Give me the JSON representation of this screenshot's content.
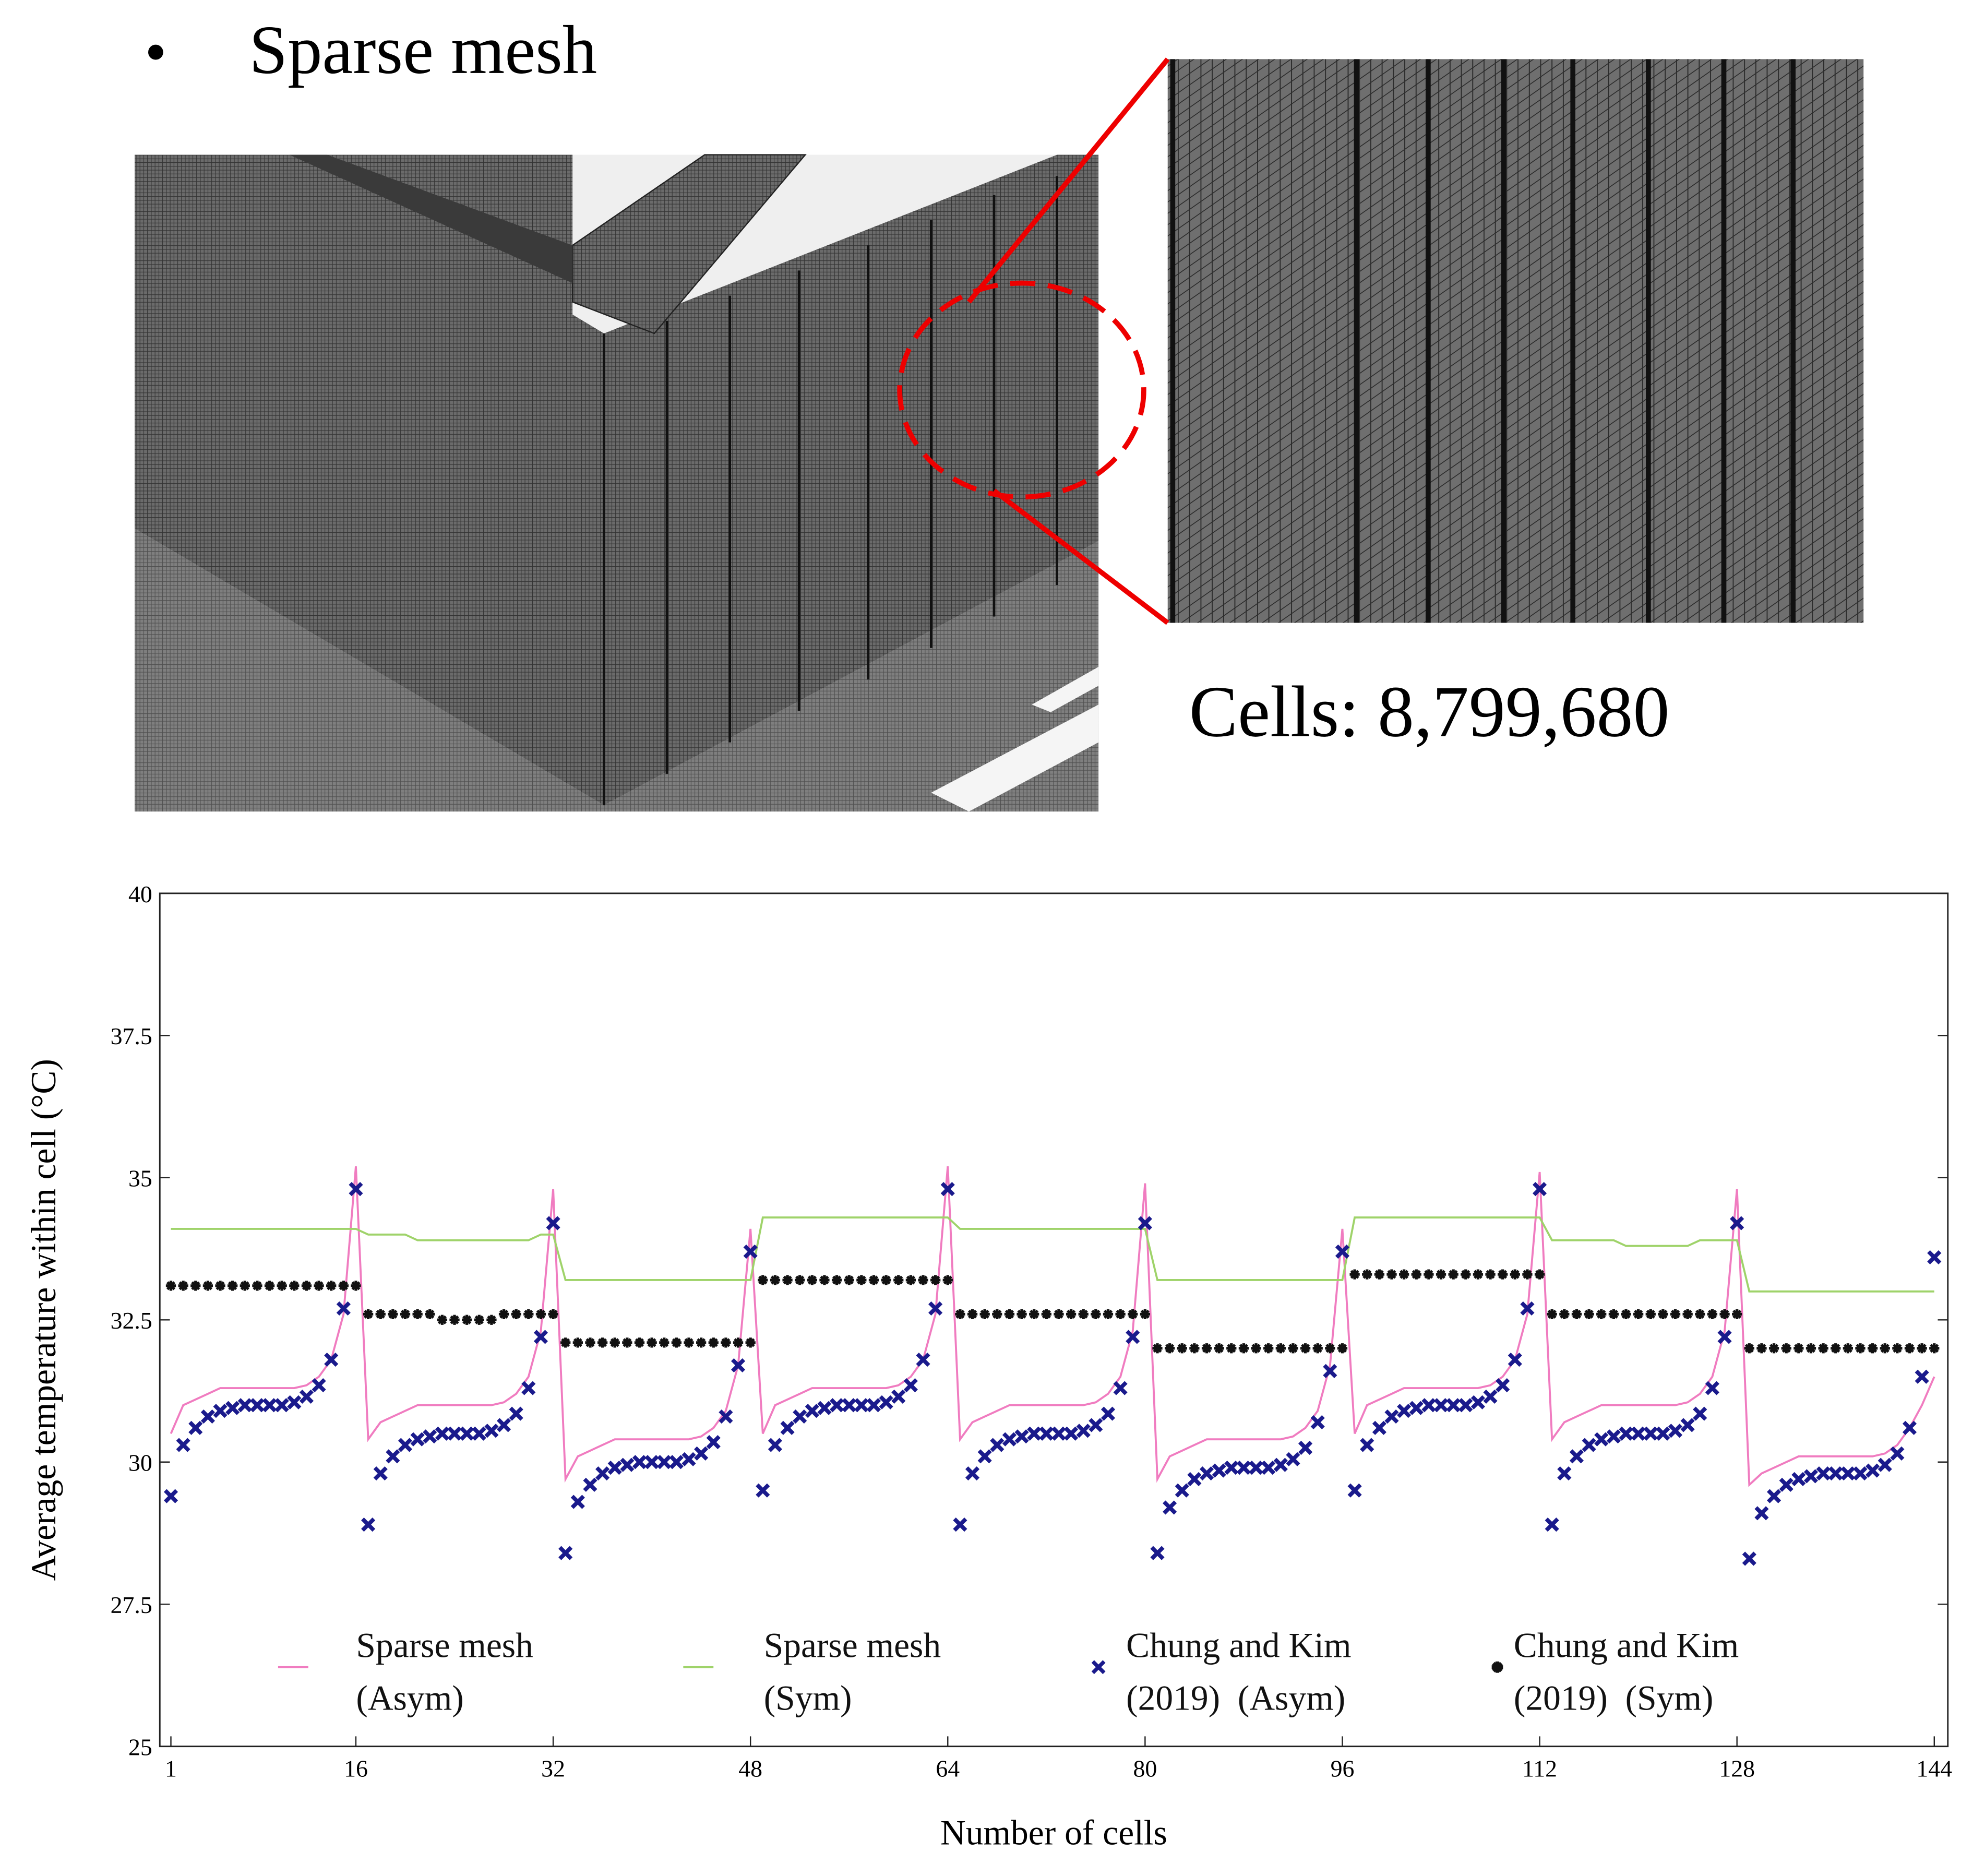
{
  "header": {
    "bullet": "•",
    "title": "Sparse mesh",
    "cells_label": "Cells: 8,799,680"
  },
  "chart_data": {
    "type": "line",
    "xlabel": "Number of cells",
    "ylabel": "Average temperature within cell (°C)",
    "xlim": [
      0.1,
      145.1
    ],
    "ylim": [
      25,
      40
    ],
    "xticks": [
      1,
      16,
      32,
      48,
      64,
      80,
      96,
      112,
      128,
      144
    ],
    "yticks": [
      25,
      27.5,
      30,
      32.5,
      35,
      37.5,
      40
    ],
    "x": [
      1,
      2,
      3,
      4,
      5,
      6,
      7,
      8,
      9,
      10,
      11,
      12,
      13,
      14,
      15,
      16,
      17,
      18,
      19,
      20,
      21,
      22,
      23,
      24,
      25,
      26,
      27,
      28,
      29,
      30,
      31,
      32,
      33,
      34,
      35,
      36,
      37,
      38,
      39,
      40,
      41,
      42,
      43,
      44,
      45,
      46,
      47,
      48,
      49,
      50,
      51,
      52,
      53,
      54,
      55,
      56,
      57,
      58,
      59,
      60,
      61,
      62,
      63,
      64,
      65,
      66,
      67,
      68,
      69,
      70,
      71,
      72,
      73,
      74,
      75,
      76,
      77,
      78,
      79,
      80,
      81,
      82,
      83,
      84,
      85,
      86,
      87,
      88,
      89,
      90,
      91,
      92,
      93,
      94,
      95,
      96,
      97,
      98,
      99,
      100,
      101,
      102,
      103,
      104,
      105,
      106,
      107,
      108,
      109,
      110,
      111,
      112,
      113,
      114,
      115,
      116,
      117,
      118,
      119,
      120,
      121,
      122,
      123,
      124,
      125,
      126,
      127,
      128,
      129,
      130,
      131,
      132,
      133,
      134,
      135,
      136,
      137,
      138,
      139,
      140,
      141,
      142,
      143,
      144
    ],
    "series": [
      {
        "name": "Sparse mesh (Asym)",
        "color": "#f07cc0",
        "style": "line",
        "values": [
          30.5,
          31,
          31.1,
          31.2,
          31.3,
          31.3,
          31.3,
          31.3,
          31.3,
          31.3,
          31.3,
          31.35,
          31.5,
          31.8,
          32.6,
          35.2,
          30.4,
          30.7,
          30.8,
          30.9,
          31,
          31,
          31,
          31,
          31,
          31,
          31,
          31.05,
          31.2,
          31.5,
          32.3,
          34.8,
          29.7,
          30.1,
          30.2,
          30.3,
          30.4,
          30.4,
          30.4,
          30.4,
          30.4,
          30.4,
          30.4,
          30.45,
          30.6,
          30.9,
          31.7,
          34.1,
          30.5,
          31,
          31.1,
          31.2,
          31.3,
          31.3,
          31.3,
          31.3,
          31.3,
          31.3,
          31.3,
          31.35,
          31.5,
          31.8,
          32.6,
          35.2,
          30.4,
          30.7,
          30.8,
          30.9,
          31,
          31,
          31,
          31,
          31,
          31,
          31,
          31.05,
          31.2,
          31.5,
          32.3,
          34.9,
          29.7,
          30.1,
          30.2,
          30.3,
          30.4,
          30.4,
          30.4,
          30.4,
          30.4,
          30.4,
          30.4,
          30.45,
          30.6,
          30.9,
          31.7,
          34.1,
          30.5,
          31,
          31.1,
          31.2,
          31.3,
          31.3,
          31.3,
          31.3,
          31.3,
          31.3,
          31.3,
          31.35,
          31.5,
          31.8,
          32.6,
          35.1,
          30.4,
          30.7,
          30.8,
          30.9,
          31,
          31,
          31,
          31,
          31,
          31,
          31,
          31.05,
          31.2,
          31.5,
          32.3,
          34.8,
          29.6,
          29.8,
          29.9,
          30,
          30.1,
          30.1,
          30.1,
          30.1,
          30.1,
          30.1,
          30.1,
          30.15,
          30.3,
          30.6,
          31,
          31.5
        ]
      },
      {
        "name": "Sparse mesh (Sym)",
        "color": "#9fd36a",
        "style": "line",
        "values": [
          34.1,
          34.1,
          34.1,
          34.1,
          34.1,
          34.1,
          34.1,
          34.1,
          34.1,
          34.1,
          34.1,
          34.1,
          34.1,
          34.1,
          34.1,
          34.1,
          34,
          34,
          34,
          34,
          33.9,
          33.9,
          33.9,
          33.9,
          33.9,
          33.9,
          33.9,
          33.9,
          33.9,
          33.9,
          34,
          34,
          33.2,
          33.2,
          33.2,
          33.2,
          33.2,
          33.2,
          33.2,
          33.2,
          33.2,
          33.2,
          33.2,
          33.2,
          33.2,
          33.2,
          33.2,
          33.2,
          34.3,
          34.3,
          34.3,
          34.3,
          34.3,
          34.3,
          34.3,
          34.3,
          34.3,
          34.3,
          34.3,
          34.3,
          34.3,
          34.3,
          34.3,
          34.3,
          34.1,
          34.1,
          34.1,
          34.1,
          34.1,
          34.1,
          34.1,
          34.1,
          34.1,
          34.1,
          34.1,
          34.1,
          34.1,
          34.1,
          34.1,
          34.1,
          33.2,
          33.2,
          33.2,
          33.2,
          33.2,
          33.2,
          33.2,
          33.2,
          33.2,
          33.2,
          33.2,
          33.2,
          33.2,
          33.2,
          33.2,
          33.2,
          34.3,
          34.3,
          34.3,
          34.3,
          34.3,
          34.3,
          34.3,
          34.3,
          34.3,
          34.3,
          34.3,
          34.3,
          34.3,
          34.3,
          34.3,
          34.3,
          33.9,
          33.9,
          33.9,
          33.9,
          33.9,
          33.9,
          33.8,
          33.8,
          33.8,
          33.8,
          33.8,
          33.8,
          33.9,
          33.9,
          33.9,
          33.9,
          33,
          33,
          33,
          33,
          33,
          33,
          33,
          33,
          33,
          33,
          33,
          33,
          33,
          33,
          33,
          33
        ]
      },
      {
        "name": "Chung and Kim (2019)  (Asym)",
        "color": "#1a1a8c",
        "style": "marker",
        "marker": "cross",
        "values": [
          29.4,
          30.3,
          30.6,
          30.8,
          30.9,
          30.95,
          31,
          31,
          31,
          31,
          31.05,
          31.15,
          31.35,
          31.8,
          32.7,
          34.8,
          28.9,
          29.8,
          30.1,
          30.3,
          30.4,
          30.45,
          30.5,
          30.5,
          30.5,
          30.5,
          30.55,
          30.65,
          30.85,
          31.3,
          32.2,
          34.2,
          28.4,
          29.3,
          29.6,
          29.8,
          29.9,
          29.95,
          30,
          30,
          30,
          30,
          30.05,
          30.15,
          30.35,
          30.8,
          31.7,
          33.7,
          29.5,
          30.3,
          30.6,
          30.8,
          30.9,
          30.95,
          31,
          31,
          31,
          31,
          31.05,
          31.15,
          31.35,
          31.8,
          32.7,
          34.8,
          28.9,
          29.8,
          30.1,
          30.3,
          30.4,
          30.45,
          30.5,
          30.5,
          30.5,
          30.5,
          30.55,
          30.65,
          30.85,
          31.3,
          32.2,
          34.2,
          28.4,
          29.2,
          29.5,
          29.7,
          29.8,
          29.85,
          29.9,
          29.9,
          29.9,
          29.9,
          29.95,
          30.05,
          30.25,
          30.7,
          31.6,
          33.7,
          29.5,
          30.3,
          30.6,
          30.8,
          30.9,
          30.95,
          31,
          31,
          31,
          31,
          31.05,
          31.15,
          31.35,
          31.8,
          32.7,
          34.8,
          28.9,
          29.8,
          30.1,
          30.3,
          30.4,
          30.45,
          30.5,
          30.5,
          30.5,
          30.5,
          30.55,
          30.65,
          30.85,
          31.3,
          32.2,
          34.2,
          28.3,
          29.1,
          29.4,
          29.6,
          29.7,
          29.75,
          29.8,
          29.8,
          29.8,
          29.8,
          29.85,
          29.95,
          30.15,
          30.6,
          31.5,
          33.6
        ]
      },
      {
        "name": "Chung and Kim (2019)  (Sym)",
        "color": "#111111",
        "style": "marker",
        "marker": "asterisk",
        "values": [
          33.1,
          33.1,
          33.1,
          33.1,
          33.1,
          33.1,
          33.1,
          33.1,
          33.1,
          33.1,
          33.1,
          33.1,
          33.1,
          33.1,
          33.1,
          33.1,
          32.6,
          32.6,
          32.6,
          32.6,
          32.6,
          32.6,
          32.5,
          32.5,
          32.5,
          32.5,
          32.5,
          32.6,
          32.6,
          32.6,
          32.6,
          32.6,
          32.1,
          32.1,
          32.1,
          32.1,
          32.1,
          32.1,
          32.1,
          32.1,
          32.1,
          32.1,
          32.1,
          32.1,
          32.1,
          32.1,
          32.1,
          32.1,
          33.2,
          33.2,
          33.2,
          33.2,
          33.2,
          33.2,
          33.2,
          33.2,
          33.2,
          33.2,
          33.2,
          33.2,
          33.2,
          33.2,
          33.2,
          33.2,
          32.6,
          32.6,
          32.6,
          32.6,
          32.6,
          32.6,
          32.6,
          32.6,
          32.6,
          32.6,
          32.6,
          32.6,
          32.6,
          32.6,
          32.6,
          32.6,
          32,
          32,
          32,
          32,
          32,
          32,
          32,
          32,
          32,
          32,
          32,
          32,
          32,
          32,
          32,
          32,
          33.3,
          33.3,
          33.3,
          33.3,
          33.3,
          33.3,
          33.3,
          33.3,
          33.3,
          33.3,
          33.3,
          33.3,
          33.3,
          33.3,
          33.3,
          33.3,
          32.6,
          32.6,
          32.6,
          32.6,
          32.6,
          32.6,
          32.6,
          32.6,
          32.6,
          32.6,
          32.6,
          32.6,
          32.6,
          32.6,
          32.6,
          32.6,
          32,
          32,
          32,
          32,
          32,
          32,
          32,
          32,
          32,
          32,
          32,
          32,
          32,
          32,
          32,
          32
        ]
      }
    ]
  }
}
